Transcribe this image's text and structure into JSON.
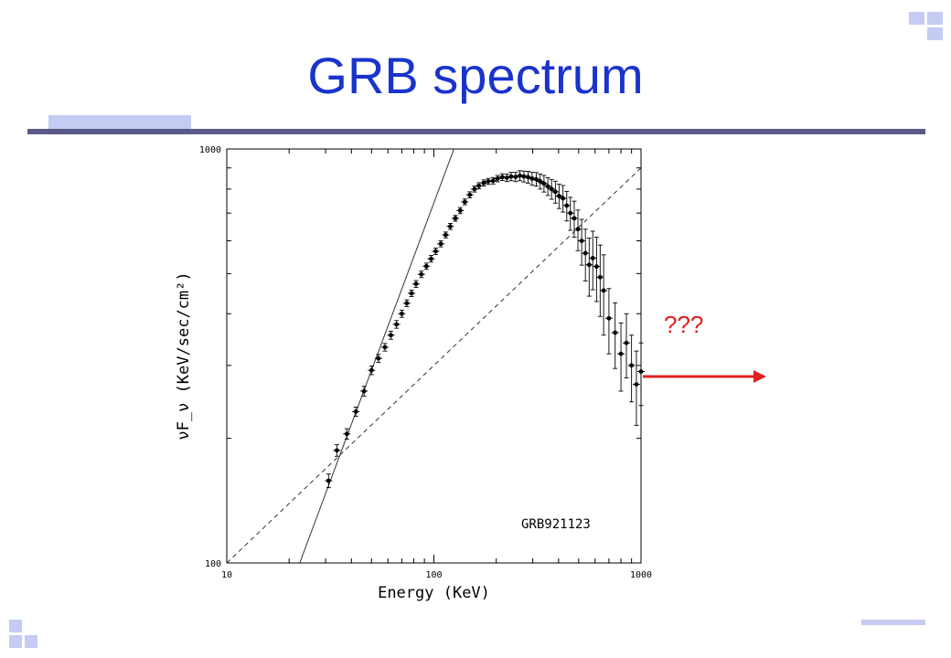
{
  "slide": {
    "title": "GRB spectrum",
    "title_color": "#1a33cc",
    "rule_color": "#5a5a8a",
    "accent_color": "#c5cbf2"
  },
  "annotation": {
    "text": "???",
    "text_color": "#e02020",
    "arrow_color": "#e02020"
  },
  "chart_data": {
    "type": "scatter",
    "scale": "log-log",
    "xlabel": "Energy (KeV)",
    "ylabel": "νF_ν (KeV/sec/cm²)",
    "xlim": [
      10,
      1000
    ],
    "ylim": [
      100,
      1000
    ],
    "x_ticks": [
      "10",
      "100",
      "1000"
    ],
    "y_ticks": [
      "100",
      "1000"
    ],
    "grid": false,
    "annotation_label": "GRB921123",
    "series": [
      {
        "marker": "point-with-errorbars",
        "x": [
          31,
          34,
          38,
          42,
          46,
          50,
          54,
          58,
          62,
          66,
          70,
          74,
          78,
          82,
          87,
          92,
          97,
          102,
          108,
          114,
          120,
          127,
          134,
          141,
          149,
          157,
          165,
          174,
          183,
          193,
          203,
          214,
          225,
          236,
          248,
          260,
          272,
          285,
          298,
          312,
          326,
          340,
          355,
          370,
          386,
          402,
          420,
          438,
          456,
          476,
          496,
          517,
          539,
          562,
          585,
          610,
          635,
          660,
          700,
          750,
          800,
          850,
          900,
          950,
          1000
        ],
        "y": [
          158,
          187,
          205,
          232,
          260,
          292,
          312,
          332,
          355,
          377,
          400,
          424,
          448,
          472,
          498,
          521,
          543,
          566,
          590,
          620,
          650,
          680,
          710,
          745,
          775,
          800,
          815,
          828,
          835,
          838,
          848,
          855,
          852,
          858,
          856,
          862,
          858,
          855,
          848,
          845,
          835,
          825,
          812,
          800,
          788,
          770,
          760,
          730,
          700,
          680,
          640,
          600,
          560,
          525,
          545,
          520,
          490,
          455,
          390,
          360,
          320,
          340,
          300,
          270,
          290
        ],
        "y_err": [
          6,
          6,
          6,
          6,
          7,
          7,
          7,
          7,
          8,
          8,
          8,
          8,
          8,
          9,
          9,
          9,
          10,
          10,
          10,
          10,
          11,
          11,
          12,
          12,
          13,
          13,
          14,
          14,
          14,
          15,
          15,
          16,
          18,
          20,
          22,
          24,
          26,
          28,
          30,
          32,
          35,
          38,
          40,
          44,
          48,
          52,
          56,
          60,
          64,
          68,
          72,
          76,
          80,
          84,
          88,
          92,
          96,
          100,
          70,
          65,
          60,
          60,
          55,
          55,
          50
        ]
      }
    ],
    "reference_lines": [
      {
        "style": "solid",
        "x": [
          22.5,
          125
        ],
        "y": [
          100,
          1000
        ]
      },
      {
        "style": "dashed",
        "x": [
          10,
          1000
        ],
        "y": [
          100,
          900
        ]
      }
    ]
  }
}
